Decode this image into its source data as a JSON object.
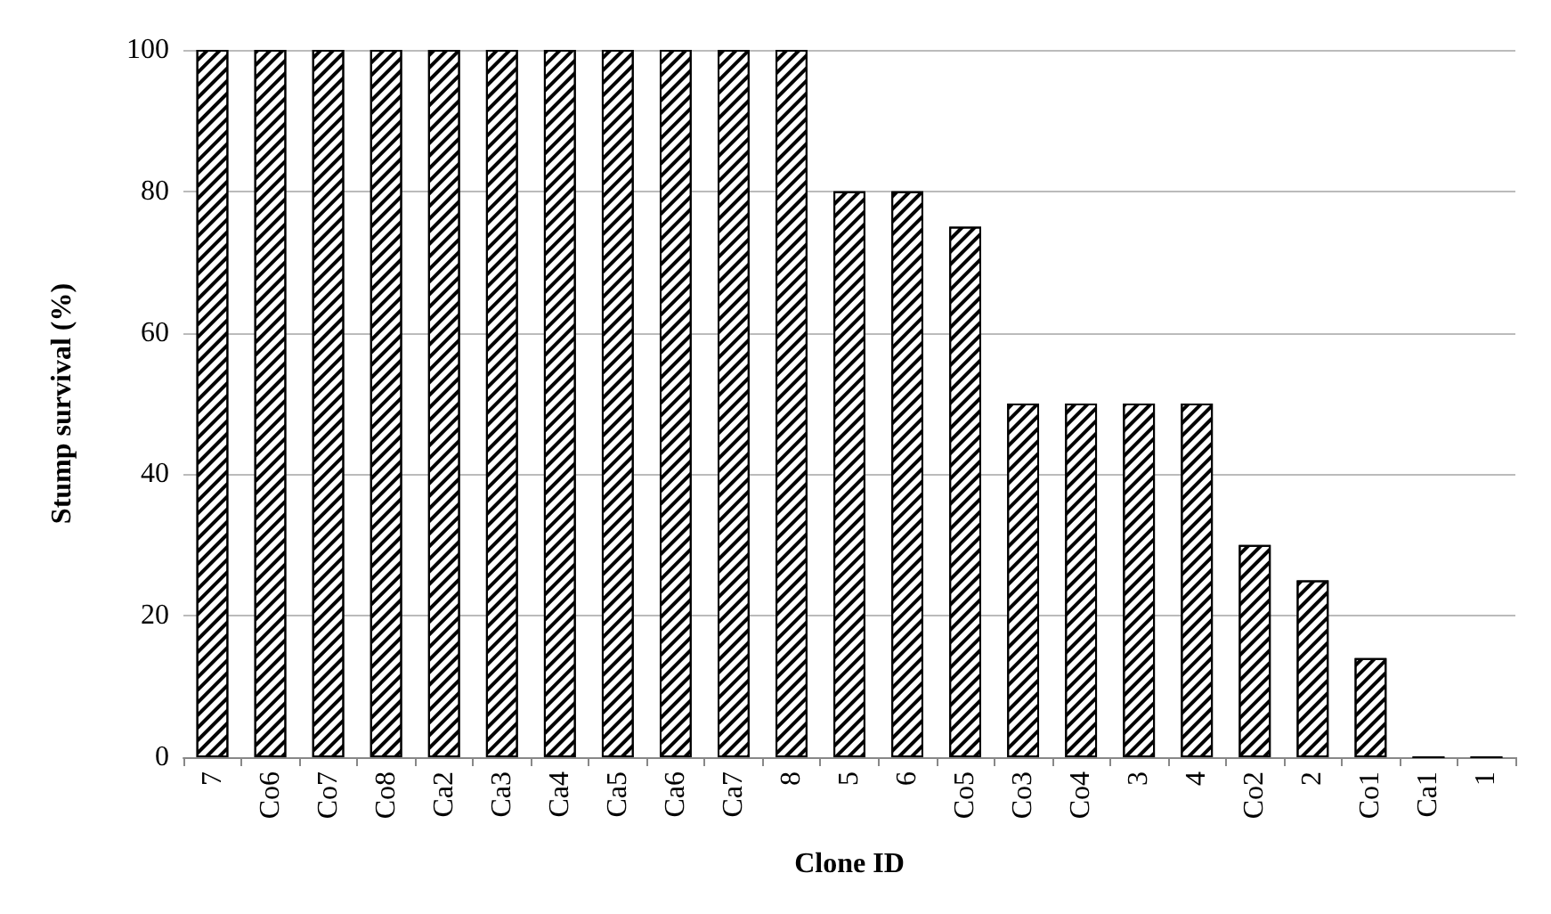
{
  "chart_data": {
    "type": "bar",
    "xlabel": "Clone ID",
    "ylabel": "Stump survival (%)",
    "categories": [
      "7",
      "Co6",
      "Co7",
      "Co8",
      "Ca2",
      "Ca3",
      "Ca4",
      "Ca5",
      "Ca6",
      "Ca7",
      "8",
      "5",
      "6",
      "Co5",
      "Co3",
      "Co4",
      "3",
      "4",
      "Co2",
      "2",
      "Co1",
      "Ca1",
      "1"
    ],
    "values": [
      100,
      100,
      100,
      100,
      100,
      100,
      100,
      100,
      100,
      100,
      100,
      80,
      80,
      75,
      50,
      50,
      50,
      50,
      30,
      25,
      14,
      0,
      0
    ],
    "color": "#000000",
    "ylim": [
      0,
      100
    ],
    "yticks": [
      0,
      20,
      40,
      60,
      80,
      100
    ],
    "grid": "y"
  }
}
